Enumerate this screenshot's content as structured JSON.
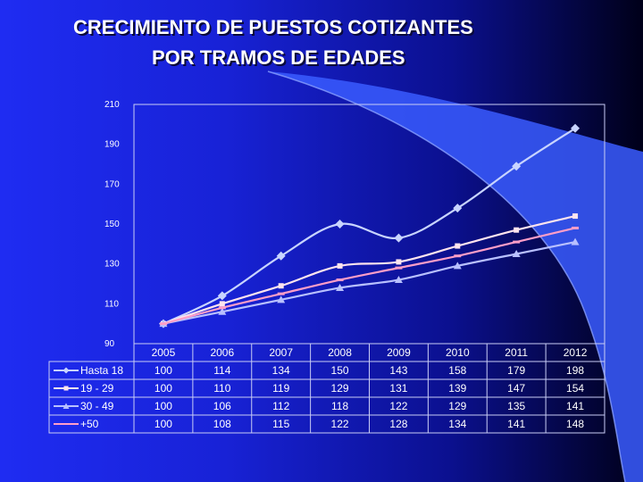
{
  "title_line1": "CRECIMIENTO DE PUESTOS COTIZANTES",
  "title_line2": "POR TRAMOS DE EDADES",
  "colors": {
    "background": "#1a22e0",
    "swoosh": "#3a5cff",
    "text": "#ffffff"
  },
  "chart_data": {
    "type": "line",
    "x": [
      "2005",
      "2006",
      "2007",
      "2008",
      "2009",
      "2010",
      "2011",
      "2012"
    ],
    "ylim": [
      90,
      210
    ],
    "yticks": [
      "90",
      "110",
      "130",
      "150",
      "170",
      "190",
      "210"
    ],
    "grid": false,
    "legend": "data-table-left",
    "series": [
      {
        "name": "Hasta 18",
        "values": [
          100,
          114,
          134,
          150,
          143,
          158,
          179,
          198
        ],
        "color": "#c8d4ff",
        "marker": "diamond"
      },
      {
        "name": "19 - 29",
        "values": [
          100,
          110,
          119,
          129,
          131,
          139,
          147,
          154
        ],
        "color": "#ffe4ee",
        "marker": "square"
      },
      {
        "name": "30 - 49",
        "values": [
          100,
          106,
          112,
          118,
          122,
          129,
          135,
          141
        ],
        "color": "#b8c0ff",
        "marker": "triangle"
      },
      {
        "name": "+50",
        "values": [
          100,
          108,
          115,
          122,
          128,
          134,
          141,
          148
        ],
        "color": "#ff9ec8",
        "marker": "none"
      }
    ]
  }
}
